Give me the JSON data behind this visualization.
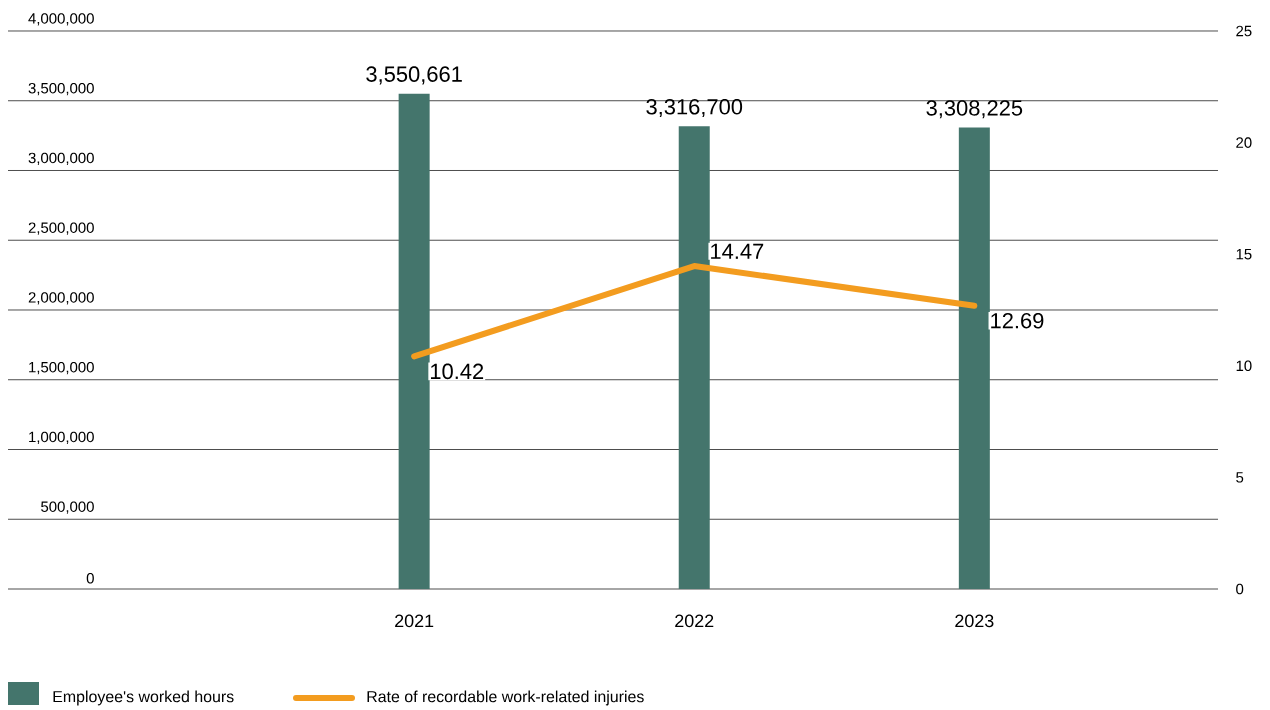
{
  "chart_data": {
    "type": "bar",
    "categories": [
      "2021",
      "2022",
      "2023"
    ],
    "series": [
      {
        "name": "Employee's worked hours",
        "color": "#44756c",
        "values": [
          3550661,
          3316700,
          3308225
        ],
        "value_labels": [
          "3,550,661",
          "3,316,700",
          "3,308,225"
        ]
      },
      {
        "name": "Rate of recordable work-related injuries",
        "type": "line",
        "axis": "y2",
        "color": "#f39c1f",
        "values": [
          10.42,
          14.47,
          12.69
        ],
        "value_labels": [
          "10.42",
          "14.47",
          "12.69"
        ]
      }
    ],
    "ylim": [
      0,
      4000000
    ],
    "yticks": [
      0,
      {
        "value": 500000,
        "label": "500,000"
      },
      {
        "value": 1000000,
        "label": "1,000,000"
      },
      {
        "value": 1500000,
        "label": "1,500,000"
      },
      {
        "value": 2000000,
        "label": "2,000,000"
      },
      {
        "value": 2500000,
        "label": "2,500,000"
      },
      {
        "value": 3000000,
        "label": "3,000,000"
      },
      {
        "value": 3500000,
        "label": "3,500,000"
      },
      {
        "value": 4000000,
        "label": "4,000,000"
      }
    ],
    "y2lim": [
      0,
      25
    ],
    "y2ticks": [
      0,
      5,
      10,
      15,
      20,
      25
    ],
    "grid": "y",
    "legend": "bottom"
  }
}
